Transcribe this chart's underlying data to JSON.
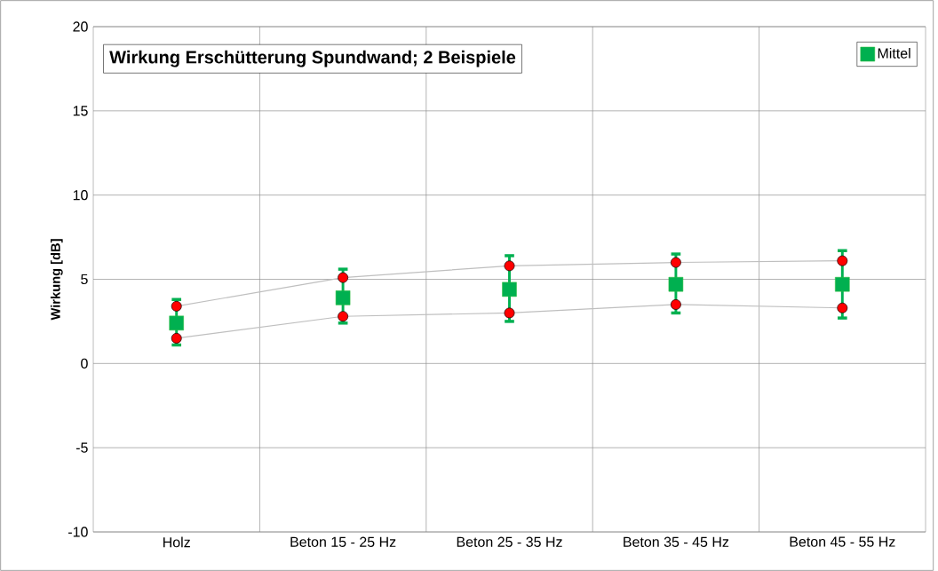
{
  "chart_data": {
    "type": "line",
    "title": "Wirkung  Erschütterung Spundwand; 2 Beispiele",
    "ylabel": "Wirkung [dB]",
    "categories": [
      "Holz",
      "Beton 15 - 25 Hz",
      "Beton 25 - 35 Hz",
      "Beton 35 - 45 Hz",
      "Beton 45 - 55 Hz"
    ],
    "series": [
      {
        "color": "#ff0000",
        "marker": "circle",
        "values": [
          3.4,
          5.1,
          5.8,
          6.0,
          6.1
        ]
      },
      {
        "color": "#ff0000",
        "marker": "circle",
        "values": [
          1.5,
          2.8,
          3.0,
          3.5,
          3.3
        ]
      },
      {
        "type": "scatter",
        "name": "Mittel",
        "color": "#00b050",
        "marker": "square",
        "values": [
          2.4,
          3.9,
          4.4,
          4.7,
          4.7
        ],
        "errors": [
          [
            1.1,
            3.8
          ],
          [
            2.4,
            5.6
          ],
          [
            2.5,
            6.4
          ],
          [
            3.0,
            6.5
          ],
          [
            2.7,
            6.7
          ]
        ]
      }
    ],
    "ylim": [
      -10,
      20
    ],
    "yticks": [
      -10,
      -5,
      0,
      5,
      10,
      15,
      20
    ],
    "grid": true,
    "legend": "top right"
  }
}
